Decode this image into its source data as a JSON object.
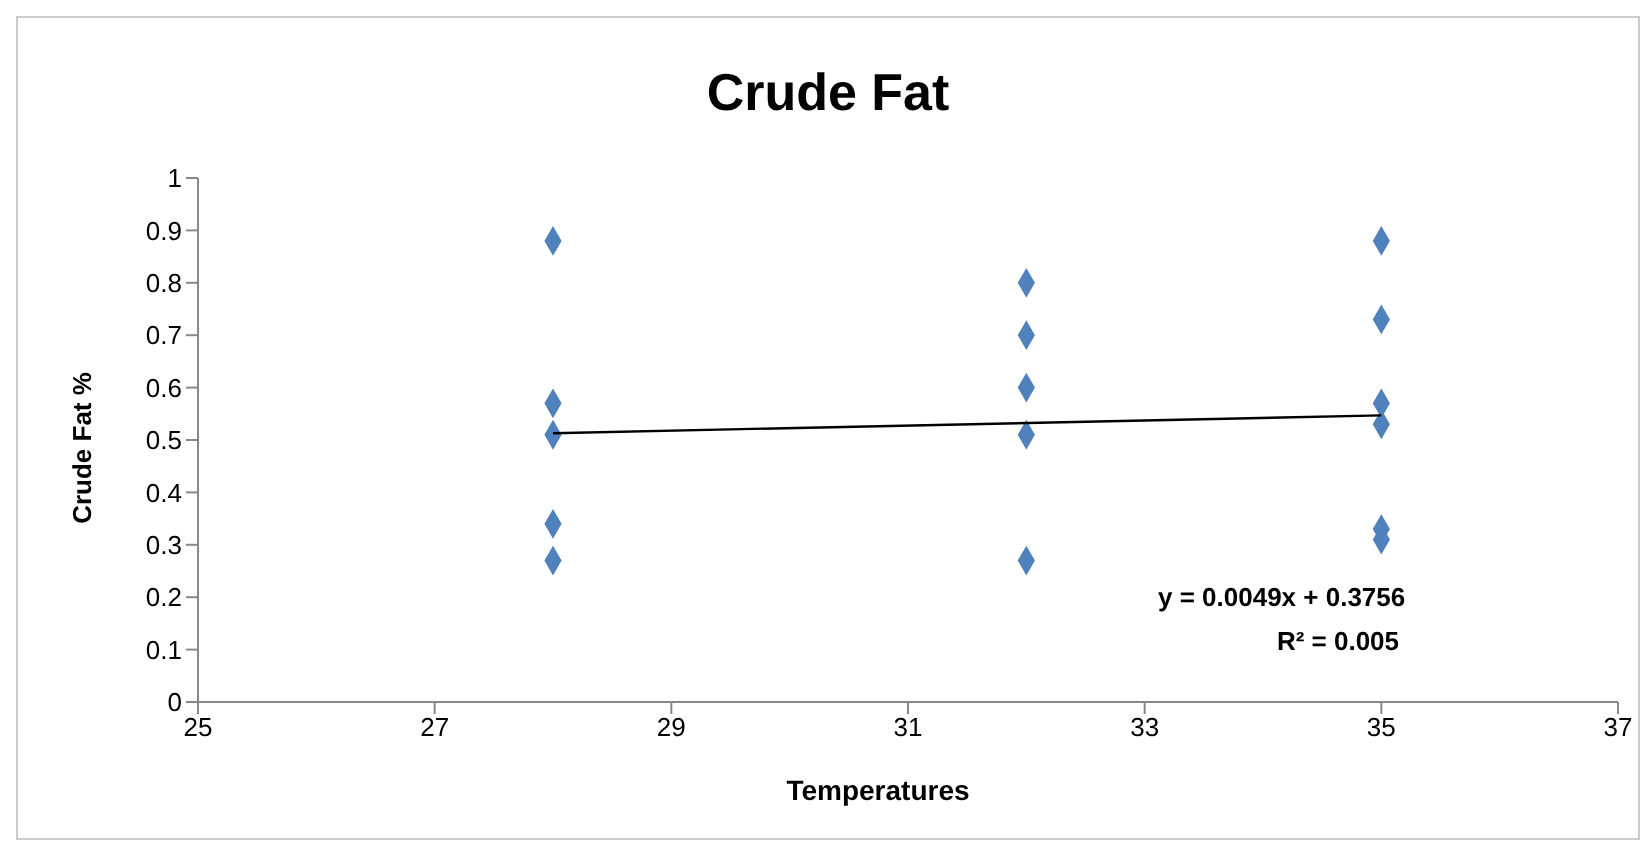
{
  "chart_data": {
    "type": "scatter",
    "title": "Crude Fat",
    "xlabel": "Temperatures",
    "ylabel": "Crude Fat %",
    "series": [
      {
        "color": "#4f81bd",
        "x": [
          28,
          28,
          28,
          28,
          28,
          32,
          32,
          32,
          32,
          32,
          35,
          35,
          35,
          35,
          35,
          35
        ],
        "values": [
          0.88,
          0.57,
          0.51,
          0.34,
          0.27,
          0.8,
          0.7,
          0.6,
          0.51,
          0.27,
          0.88,
          0.73,
          0.57,
          0.53,
          0.33,
          0.31
        ]
      },
      {
        "type": "line",
        "marker": "none",
        "color": "#000000",
        "x": [
          28,
          35
        ],
        "values": [
          0.513,
          0.547
        ]
      }
    ],
    "xlim": [
      25,
      37
    ],
    "xticks": [
      25,
      27,
      29,
      31,
      33,
      35,
      37
    ],
    "ylim": [
      0,
      1
    ],
    "yticks": [
      0,
      0.1,
      0.2,
      0.3,
      0.4,
      0.5,
      0.6,
      0.7,
      0.8,
      0.9,
      1
    ],
    "marker": "diamond",
    "annotations": [
      "y = 0.0049x + 0.3756",
      "R² = 0.005"
    ]
  }
}
